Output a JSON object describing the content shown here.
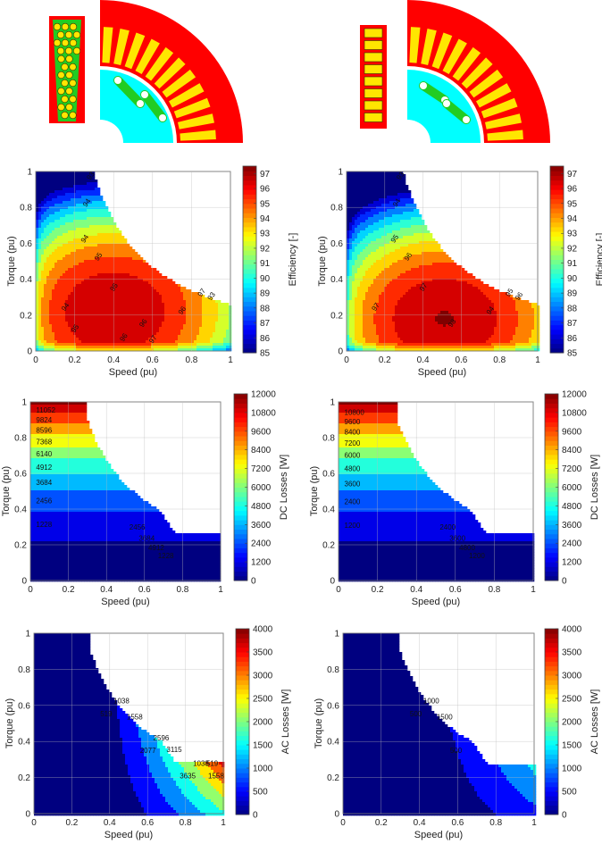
{
  "figure": {
    "panels": [
      {
        "id": "eff-left",
        "row": "efficiency",
        "col": 0
      },
      {
        "id": "eff-right",
        "row": "efficiency",
        "col": 1
      },
      {
        "id": "dc-left",
        "row": "dc",
        "col": 0
      },
      {
        "id": "dc-right",
        "row": "dc",
        "col": 1
      },
      {
        "id": "ac-left",
        "row": "ac",
        "col": 0
      },
      {
        "id": "ac-right",
        "row": "ac",
        "col": 1
      }
    ]
  },
  "chart_data": [
    {
      "type": "heatmap",
      "panel": "eff-left",
      "xlabel": "Speed (pu)",
      "ylabel": "Torque (pu)",
      "colorbar_label": "Efficiency [-]",
      "xlim": [
        0,
        1
      ],
      "ylim": [
        0,
        1
      ],
      "xticks": [
        "0",
        "0.2",
        "0.4",
        "0.6",
        "0.8",
        "1"
      ],
      "yticks": [
        "0",
        "0.2",
        "0.4",
        "0.6",
        "0.8",
        "1"
      ],
      "colorbar_ticks": [
        "85",
        "86",
        "87",
        "88",
        "89",
        "90",
        "91",
        "92",
        "93",
        "94",
        "95",
        "96",
        "97"
      ],
      "colorbar_range": [
        85,
        97.5
      ],
      "contour_labels": [
        "93",
        "94",
        "94",
        "95",
        "95",
        "96",
        "96",
        "97",
        "93",
        "94",
        "95",
        "96",
        "97"
      ],
      "peak": [
        0.38,
        0.22
      ]
    },
    {
      "type": "heatmap",
      "panel": "eff-right",
      "xlabel": "Speed (pu)",
      "ylabel": "Torque (pu)",
      "colorbar_label": "Efficiency [-]",
      "xlim": [
        0,
        1
      ],
      "ylim": [
        0,
        1
      ],
      "xticks": [
        "0",
        "0.2",
        "0.4",
        "0.6",
        "0.8",
        "1"
      ],
      "yticks": [
        "0",
        "0.2",
        "0.4",
        "0.6",
        "0.8",
        "1"
      ],
      "colorbar_ticks": [
        "85",
        "86",
        "87",
        "88",
        "89",
        "90",
        "91",
        "92",
        "93",
        "94",
        "95",
        "96",
        "97"
      ],
      "colorbar_range": [
        85,
        97.5
      ],
      "contour_labels": [
        "93",
        "94",
        "95",
        "96",
        "97",
        "98",
        "94",
        "95",
        "96",
        "97"
      ],
      "peak": [
        0.5,
        0.18
      ]
    },
    {
      "type": "heatmap",
      "panel": "dc-left",
      "xlabel": "Speed (pu)",
      "ylabel": "Torque (pu)",
      "colorbar_label": "DC Losses [W]",
      "xlim": [
        0,
        1
      ],
      "ylim": [
        0,
        1
      ],
      "xticks": [
        "0",
        "0.2",
        "0.4",
        "0.6",
        "0.8",
        "1"
      ],
      "yticks": [
        "0",
        "0.2",
        "0.4",
        "0.6",
        "0.8",
        "1"
      ],
      "colorbar_ticks": [
        "0",
        "1200",
        "2400",
        "3600",
        "4800",
        "6000",
        "7200",
        "8400",
        "9600",
        "10800",
        "12000"
      ],
      "colorbar_range": [
        0,
        12000
      ],
      "contour_levels": [
        1228,
        2456,
        3684,
        4912,
        6140,
        7368,
        8596,
        9824,
        11052
      ],
      "contour_labels": [
        "1228",
        "2456",
        "3684",
        "4912",
        "6140",
        "7368",
        "8596",
        "9824",
        "11052",
        "2456",
        "3684",
        "4912",
        "1228"
      ],
      "torque_speed_limit": {
        "base_speed": 0.3,
        "torque_at_max_speed": 0.27
      }
    },
    {
      "type": "heatmap",
      "panel": "dc-right",
      "xlabel": "Speed (pu)",
      "ylabel": "Torque (pu)",
      "colorbar_label": "DC Losses [W]",
      "xlim": [
        0,
        1
      ],
      "ylim": [
        0,
        1
      ],
      "xticks": [
        "0",
        "0.2",
        "0.4",
        "0.6",
        "0.8",
        "1"
      ],
      "yticks": [
        "0",
        "0.2",
        "0.4",
        "0.6",
        "0.8",
        "1"
      ],
      "colorbar_ticks": [
        "0",
        "1200",
        "2400",
        "3600",
        "4800",
        "6000",
        "7200",
        "8400",
        "9600",
        "10800",
        "12000"
      ],
      "colorbar_range": [
        0,
        12000
      ],
      "contour_levels": [
        1200,
        2400,
        3600,
        4800,
        6000,
        7200,
        8400,
        9600,
        10800
      ],
      "contour_labels": [
        "1200",
        "2400",
        "3600",
        "4800",
        "6000",
        "7200",
        "8400",
        "9600",
        "10800",
        "2400",
        "3600",
        "4800",
        "1200"
      ],
      "torque_speed_limit": {
        "base_speed": 0.3,
        "torque_at_max_speed": 0.27
      }
    },
    {
      "type": "heatmap",
      "panel": "ac-left",
      "xlabel": "Speed (pu)",
      "ylabel": "Torque (pu)",
      "colorbar_label": "AC Losses [W]",
      "xlim": [
        0,
        1
      ],
      "ylim": [
        0,
        1
      ],
      "xticks": [
        "0",
        "0.2",
        "0.4",
        "0.6",
        "0.8",
        "1"
      ],
      "yticks": [
        "0",
        "0.2",
        "0.4",
        "0.6",
        "0.8",
        "1"
      ],
      "colorbar_ticks": [
        "0",
        "500",
        "1000",
        "1500",
        "2000",
        "2500",
        "3000",
        "3500",
        "4000"
      ],
      "colorbar_range": [
        0,
        4000
      ],
      "contour_labels": [
        "519",
        "1038",
        "1558",
        "2077",
        "2596",
        "3115",
        "3635",
        "1038",
        "519",
        "1558"
      ],
      "torque_speed_limit": {
        "base_speed": 0.3,
        "torque_at_max_speed": 0.28
      }
    },
    {
      "type": "heatmap",
      "panel": "ac-right",
      "xlabel": "Speed (pu)",
      "ylabel": "Torque (pu)",
      "colorbar_label": "AC Losses [W]",
      "xlim": [
        0,
        1
      ],
      "ylim": [
        0,
        1
      ],
      "xticks": [
        "0",
        "0.2",
        "0.4",
        "0.6",
        "0.8",
        "1"
      ],
      "yticks": [
        "0",
        "0.2",
        "0.4",
        "0.6",
        "0.8",
        "1"
      ],
      "colorbar_ticks": [
        "0",
        "500",
        "1000",
        "1500",
        "2000",
        "2500",
        "3000",
        "3500",
        "4000"
      ],
      "colorbar_range": [
        0,
        4000
      ],
      "contour_labels": [
        "500",
        "1000",
        "1500",
        "500"
      ],
      "torque_speed_limit": {
        "base_speed": 0.3,
        "torque_at_max_speed": 0.27
      }
    }
  ],
  "colors": {
    "stator": "#ff0000",
    "magnet_green": "#22cc22",
    "rotor_cyan": "#00ffff",
    "slot_yellow": "#ffe600",
    "conductor_outline": "#333300"
  }
}
